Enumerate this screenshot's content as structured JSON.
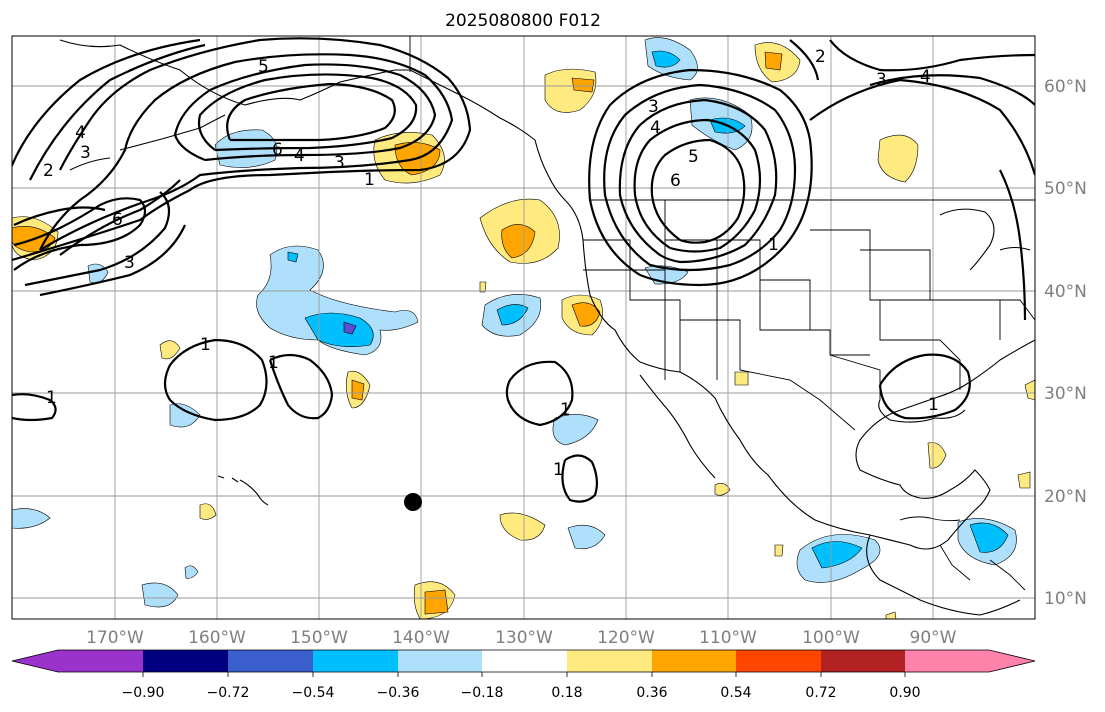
{
  "map": {
    "title": "2025080800 F012",
    "lon_labels": [
      "170°W",
      "160°W",
      "150°W",
      "140°W",
      "130°W",
      "120°W",
      "110°W",
      "100°W",
      "90°W"
    ],
    "lat_labels": [
      "60°N",
      "50°N",
      "40°N",
      "30°N",
      "20°N",
      "10°N"
    ],
    "contour_labels": [
      "5",
      "4",
      "3",
      "2",
      "6",
      "4",
      "3",
      "1",
      "6",
      "3",
      "3",
      "4",
      "5",
      "6",
      "1",
      "3",
      "4",
      "2",
      "1",
      "1",
      "1",
      "1",
      "1",
      "1"
    ],
    "marker": "station-dot"
  },
  "colorbar": {
    "tick_labels": [
      "−0.90",
      "−0.72",
      "−0.54",
      "−0.36",
      "−0.18",
      "0.18",
      "0.36",
      "0.54",
      "0.72",
      "0.90"
    ],
    "colors": [
      "#9933cc",
      "#000080",
      "#3a5fcd",
      "#00bfff",
      "#aee0fb",
      "#ffffff",
      "#ffea80",
      "#ffa500",
      "#ff4500",
      "#b22222",
      "#ff82ab",
      "#ff82ab"
    ]
  }
}
